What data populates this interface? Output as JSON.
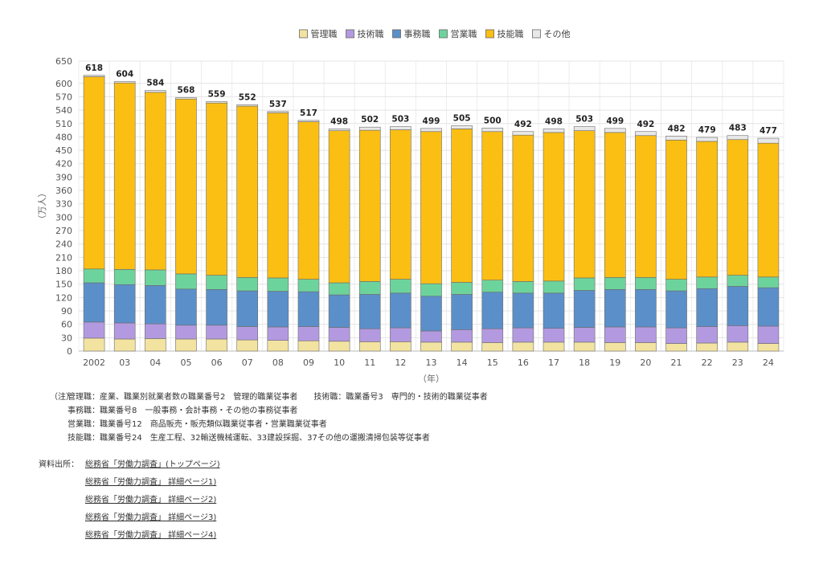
{
  "chart_data": {
    "type": "bar",
    "stacked": true,
    "categories": [
      "2002",
      "03",
      "04",
      "05",
      "06",
      "07",
      "08",
      "09",
      "10",
      "11",
      "12",
      "13",
      "14",
      "15",
      "16",
      "17",
      "18",
      "19",
      "20",
      "21",
      "22",
      "23",
      "24"
    ],
    "series": [
      {
        "name": "管理職",
        "color": "#f3e3a1",
        "values": [
          29,
          27,
          28,
          27,
          27,
          25,
          24,
          23,
          22,
          21,
          21,
          20,
          20,
          19,
          20,
          20,
          20,
          19,
          19,
          17,
          18,
          20,
          17
        ]
      },
      {
        "name": "技術職",
        "color": "#b39ae0",
        "values": [
          36,
          36,
          33,
          31,
          31,
          30,
          30,
          32,
          31,
          29,
          31,
          25,
          28,
          31,
          32,
          31,
          33,
          35,
          35,
          35,
          37,
          37,
          39
        ]
      },
      {
        "name": "事務職",
        "color": "#5b8fc9",
        "values": [
          88,
          86,
          86,
          81,
          80,
          80,
          80,
          78,
          73,
          77,
          78,
          78,
          79,
          82,
          78,
          79,
          83,
          84,
          84,
          83,
          85,
          88,
          86
        ]
      },
      {
        "name": "営業職",
        "color": "#6dd39c",
        "values": [
          31,
          34,
          35,
          34,
          32,
          30,
          30,
          28,
          27,
          29,
          31,
          28,
          27,
          27,
          26,
          27,
          28,
          27,
          27,
          26,
          26,
          25,
          24
        ]
      },
      {
        "name": "技能職",
        "color": "#fbbf14",
        "values": [
          431,
          418,
          398,
          392,
          386,
          384,
          370,
          353,
          341,
          339,
          335,
          341,
          344,
          333,
          328,
          333,
          330,
          325,
          318,
          312,
          304,
          304,
          300
        ]
      },
      {
        "name": "その他",
        "color": "#e8e8e8",
        "values": [
          3,
          3,
          4,
          3,
          3,
          3,
          3,
          3,
          4,
          7,
          7,
          7,
          7,
          8,
          8,
          8,
          9,
          9,
          9,
          9,
          9,
          9,
          11
        ]
      }
    ],
    "totals": [
      "618",
      "604",
      "584",
      "568",
      "559",
      "552",
      "537",
      "517",
      "498",
      "502",
      "503",
      "499",
      "505",
      "500",
      "492",
      "498",
      "503",
      "499",
      "492",
      "482",
      "479",
      "483",
      "477"
    ],
    "ylim": [
      0,
      650
    ],
    "yticks": [
      0,
      30,
      60,
      90,
      120,
      150,
      180,
      210,
      240,
      270,
      300,
      330,
      360,
      390,
      420,
      450,
      480,
      510,
      540,
      570,
      600,
      650
    ],
    "ylabel": "（万人）",
    "xlabel": "（年）",
    "legend_position": "top-center",
    "grid": true
  },
  "notes": {
    "head": "（注）",
    "lines": [
      "管理職：産業、職業別就業者数の職業番号2　管理的職業従事者　　技術職：職業番号3　専門的・技術的職業従事者",
      "事務職：職業番号8　一般事務・会計事務・その他の事務従事者",
      "営業職：職業番号12　商品販売・販売類似職業従事者・営業職業従事者",
      "技能職：職業番号24　生産工程、32輸送機械運転、33建設採掘、37その他の運搬清掃包装等従事者"
    ]
  },
  "sources": {
    "label": "資料出所：",
    "links": [
      "総務省「労働力調査」(トップページ)",
      "総務省「労働力調査」 詳細ページ1)",
      "総務省「労働力調査」 詳細ページ2)",
      "総務省「労働力調査」 詳細ページ3)",
      "総務省「労働力調査」 詳細ページ4)"
    ]
  }
}
